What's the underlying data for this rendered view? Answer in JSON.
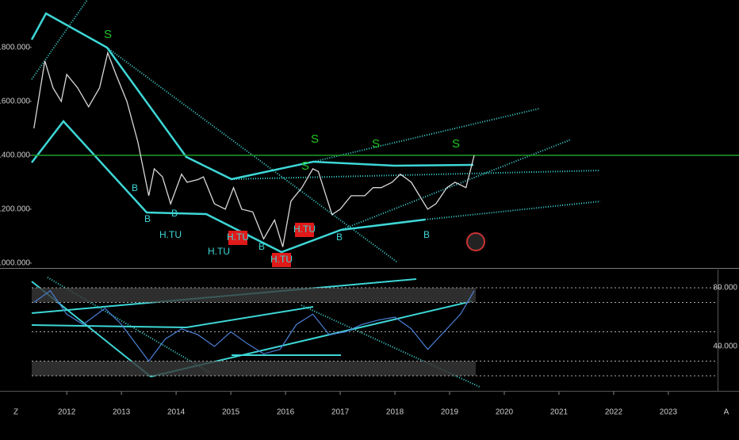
{
  "chart_data": {
    "type": "line",
    "x": [
      2011.4,
      2011.6,
      2011.75,
      2011.9,
      2012.0,
      2012.2,
      2012.4,
      2012.6,
      2012.75,
      2012.9,
      2013.1,
      2013.3,
      2013.5,
      2013.6,
      2013.75,
      2013.9,
      2014.1,
      2014.2,
      2014.4,
      2014.5,
      2014.7,
      2014.9,
      2015.05,
      2015.2,
      2015.4,
      2015.6,
      2015.8,
      2015.95,
      2016.1,
      2016.3,
      2016.5,
      2016.6,
      2016.85,
      2017.0,
      2017.2,
      2017.45,
      2017.6,
      2017.75,
      2017.95,
      2018.1,
      2018.3,
      2018.45,
      2018.6,
      2018.75,
      2018.95,
      2019.1,
      2019.3,
      2019.45
    ],
    "series": [
      {
        "color": "#d9d9d9",
        "values": [
          1500,
          1750,
          1650,
          1600,
          1700,
          1650,
          1580,
          1650,
          1780,
          1700,
          1600,
          1450,
          1250,
          1350,
          1320,
          1220,
          1330,
          1300,
          1310,
          1320,
          1220,
          1200,
          1280,
          1200,
          1190,
          1090,
          1160,
          1060,
          1230,
          1280,
          1350,
          1340,
          1180,
          1200,
          1250,
          1250,
          1280,
          1280,
          1300,
          1330,
          1300,
          1250,
          1200,
          1220,
          1280,
          1300,
          1280,
          1400
        ]
      }
    ],
    "hline": 1400,
    "hline_color": "#1f9e2a",
    "xlim": [
      2011.36,
      2023.9
    ],
    "ylim": [
      985,
      1976
    ],
    "xticks": [
      2012,
      2013,
      2014,
      2015,
      2016,
      2017,
      2018,
      2019,
      2020,
      2021,
      2022,
      2023
    ],
    "yticks": [
      {
        "value": 1000,
        "label": "1000.000"
      },
      {
        "value": 1200,
        "label": "1200.000"
      },
      {
        "value": 1400,
        "label": "1400.000"
      },
      {
        "value": 1600,
        "label": "1600.000"
      },
      {
        "value": 1800,
        "label": "1800.000"
      }
    ],
    "annotations": [
      "S",
      "B",
      "B",
      "H.TU",
      "S",
      "B",
      "H.TU",
      "H.TU",
      "B",
      "S",
      "H.TU",
      "S",
      "B",
      "S",
      "B",
      "H.TU"
    ],
    "oscillator": {
      "x": [
        2011.4,
        2011.7,
        2012.0,
        2012.3,
        2012.7,
        2013.0,
        2013.3,
        2013.5,
        2013.8,
        2014.1,
        2014.4,
        2014.7,
        2015.0,
        2015.3,
        2015.6,
        2015.9,
        2016.2,
        2016.5,
        2016.8,
        2017.1,
        2017.4,
        2017.7,
        2018.0,
        2018.3,
        2018.6,
        2018.9,
        2019.2,
        2019.45
      ],
      "color": "#4a7fd6",
      "values": [
        70,
        78,
        62,
        55,
        66,
        55,
        40,
        30,
        45,
        52,
        48,
        40,
        50,
        42,
        35,
        38,
        55,
        62,
        48,
        50,
        55,
        58,
        60,
        52,
        38,
        50,
        62,
        78
      ],
      "ylim": [
        10.3,
        92.4
      ],
      "yticks": [
        {
          "value": 40,
          "label": "40.000"
        },
        {
          "value": 80,
          "label": "80.000"
        }
      ],
      "levels": [
        80,
        70,
        50,
        30,
        20
      ]
    },
    "toolbar": {
      "left": "Z",
      "right": "A"
    }
  }
}
